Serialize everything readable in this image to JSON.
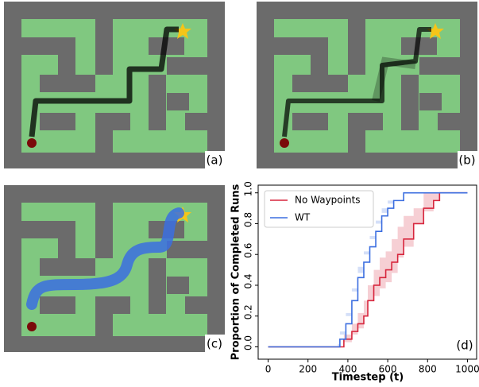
{
  "panel_labels": [
    "(a)",
    "(b)",
    "(c)"
  ],
  "chart_data": {
    "type": "line",
    "step": true,
    "x_label": "Timestep (t)",
    "y_label": "Proportion of Completed Runs",
    "annotation": "(d)",
    "xlim": [
      -50,
      1050
    ],
    "xticks": [
      0,
      200,
      400,
      600,
      800,
      1000
    ],
    "ylim": [
      -0.08,
      1.05
    ],
    "yticks": [
      {
        "value": 0,
        "label": "0.0"
      },
      0.2,
      0.4,
      0.6,
      0.8,
      {
        "value": 1,
        "label": "1.0"
      }
    ],
    "legend": "upper left",
    "series": [
      {
        "name": "No Waypoints",
        "color": "#d7263d",
        "x": [
          0,
          370,
          380,
          420,
          450,
          480,
          500,
          530,
          560,
          590,
          620,
          650,
          680,
          730,
          780,
          830,
          860,
          1000
        ],
        "values": [
          0,
          0,
          0.05,
          0.1,
          0.15,
          0.2,
          0.3,
          0.4,
          0.45,
          0.5,
          0.55,
          0.6,
          0.7,
          0.8,
          0.9,
          0.95,
          1.0,
          1.0
        ],
        "lower": [
          0,
          0,
          0,
          0.03,
          0.08,
          0.12,
          0.2,
          0.3,
          0.33,
          0.38,
          0.42,
          0.48,
          0.58,
          0.65,
          0.8,
          0.88,
          0.95,
          1.0
        ],
        "upper": [
          0,
          0,
          0.08,
          0.15,
          0.22,
          0.3,
          0.4,
          0.5,
          0.58,
          0.62,
          0.7,
          0.78,
          0.85,
          0.9,
          1.0,
          1.0,
          1.0,
          1.0
        ]
      },
      {
        "name": "WT",
        "color": "#3b6ee0",
        "x": [
          0,
          350,
          360,
          390,
          420,
          450,
          480,
          510,
          540,
          570,
          600,
          630,
          680,
          1000
        ],
        "values": [
          0,
          0,
          0.05,
          0.15,
          0.3,
          0.45,
          0.55,
          0.65,
          0.75,
          0.85,
          0.9,
          0.95,
          1.0,
          1.0
        ],
        "lower": [
          0,
          0,
          0.02,
          0.1,
          0.22,
          0.38,
          0.48,
          0.6,
          0.7,
          0.8,
          0.87,
          0.93,
          0.98,
          1.0
        ],
        "upper": [
          0,
          0,
          0.08,
          0.2,
          0.36,
          0.52,
          0.62,
          0.72,
          0.82,
          0.9,
          0.95,
          0.98,
          1.0,
          1.0
        ]
      }
    ]
  }
}
